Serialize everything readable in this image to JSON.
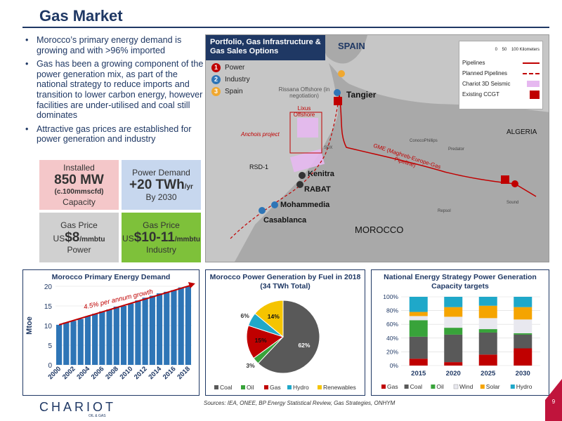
{
  "header": {
    "title": "Gas Market"
  },
  "bullets": [
    "Morocco’s primary energy demand is growing and with >96% imported",
    "Gas has been a growing component of the power generation mix, as part of the national strategy to reduce imports and transition to lower carbon energy, however facilities are under-utilised and coal still dominates",
    "Attractive gas prices are established for power generation and industry"
  ],
  "stats": {
    "installed": {
      "line1": "Installed",
      "big": "850 MW",
      "sub": "(c.100mmscfd)",
      "line4": "Capacity"
    },
    "demand": {
      "line1": "Power Demand",
      "big": "+20 TWh",
      "unit": "/yr",
      "line3": "By 2030"
    },
    "price_power": {
      "line1": "Gas Price",
      "prefix": "US",
      "big": "$8",
      "unit": "/mmbtu",
      "line3": "Power"
    },
    "price_industry": {
      "line1": "Gas Price",
      "prefix": "US",
      "big": "$10-11",
      "unit": "/mmbtu",
      "line3": "Industry"
    }
  },
  "map": {
    "header": "Portfolio, Gas Infrastructure & Gas Sales Options",
    "legend": [
      {
        "num": "1",
        "label": "Power"
      },
      {
        "num": "2",
        "label": "Industry"
      },
      {
        "num": "3",
        "label": "Spain"
      }
    ],
    "right_legend": [
      {
        "label": "Pipelines"
      },
      {
        "label": "Planned Pipelines"
      },
      {
        "label": "Chariot 3D Seismic"
      },
      {
        "label": "Existing CCGT"
      }
    ],
    "scale": {
      "a": "0",
      "b": "50",
      "c": "100 Kilometers"
    },
    "labels": {
      "spain": "SPAIN",
      "tangier": "Tangier",
      "algeria": "ALGERIA",
      "morocco": "MOROCCO",
      "kenitra": "Kenitra",
      "rabat": "RABAT",
      "mohammedia": "Mohammedia",
      "casablanca": "Casablanca",
      "rissana": "Rissana Offshore (in negotiation)",
      "lixus": "Lixus Offshore",
      "anchois": "Anchois project",
      "rsd": "RSD-1",
      "gme": "GME (Maghreb-Europe-Gas Pipeline)",
      "conoco": "ConocoPhillips",
      "predator": "Predator",
      "sdx": "SDX",
      "repsol": "Repsol",
      "sound": "Sound"
    }
  },
  "chart_primary": {
    "title": "Morocco Primary Energy Demand",
    "annotation": "4.5% per annum growth",
    "color": "#2e75b6",
    "trend_color": "#c00000"
  },
  "chart_pie": {
    "title": "Morocco Power Generation by Fuel in 2018 (34 TWh Total)"
  },
  "chart_ne": {
    "title": "National Energy Strategy Power Generation Capacity targets"
  },
  "footer": {
    "source": "Sources: IEA, ONEE, BP Energy Statistical Review, Gas Strategies, ONHYM",
    "logo": "CHARIOT",
    "logo_sub": "OIL & GAS",
    "page": "9"
  },
  "chart_data": [
    {
      "type": "bar",
      "title": "Morocco Primary Energy Demand",
      "ylabel": "Mtoe",
      "ylim": [
        0,
        20
      ],
      "yticks": [
        0,
        5,
        10,
        15,
        20
      ],
      "categories": [
        "2000",
        "2001",
        "2002",
        "2003",
        "2004",
        "2005",
        "2006",
        "2007",
        "2008",
        "2009",
        "2010",
        "2011",
        "2012",
        "2013",
        "2014",
        "2015",
        "2016",
        "2017",
        "2018"
      ],
      "xtick_labels": [
        "2000",
        "2002",
        "2004",
        "2006",
        "2008",
        "2010",
        "2012",
        "2014",
        "2016",
        "2018"
      ],
      "values": [
        10.2,
        10.8,
        11.2,
        11.7,
        12.4,
        13.0,
        13.6,
        14.1,
        14.8,
        15.0,
        15.6,
        16.4,
        17.1,
        17.6,
        18.2,
        18.6,
        19.0,
        19.7,
        20.0
      ],
      "grid": true
    },
    {
      "type": "pie",
      "title": "Morocco Power Generation by Fuel in 2018 (34 TWh Total)",
      "slices": [
        {
          "label": "Coal",
          "value": 62,
          "color": "#595959"
        },
        {
          "label": "Oil",
          "value": 3,
          "color": "#38a33a"
        },
        {
          "label": "Gas",
          "value": 15,
          "color": "#c00000"
        },
        {
          "label": "Hydro",
          "value": 6,
          "color": "#1fa8c9"
        },
        {
          "label": "Renewables",
          "value": 14,
          "color": "#f5c400"
        }
      ],
      "data_labels": {
        "Coal": "62%",
        "Oil": "3%",
        "Gas": "15%",
        "Hydro": "6%",
        "Renewables": "14%"
      },
      "legend": "bottom"
    },
    {
      "type": "bar",
      "stacked": true,
      "title": "National Energy Strategy Power Generation Capacity targets",
      "categories": [
        "2015",
        "2020",
        "2025",
        "2030"
      ],
      "ylim": [
        0,
        100
      ],
      "yticks": [
        "0%",
        "20%",
        "40%",
        "60%",
        "80%",
        "100%"
      ],
      "series": [
        {
          "name": "Gas",
          "color": "#c00000",
          "values": [
            10,
            5,
            16,
            25
          ]
        },
        {
          "name": "Coal",
          "color": "#595959",
          "values": [
            32,
            40,
            32,
            20
          ]
        },
        {
          "name": "Oil",
          "color": "#38a33a",
          "values": [
            24,
            10,
            5,
            2
          ]
        },
        {
          "name": "Wind",
          "color": "#e8e8ef",
          "values": [
            6,
            16,
            16,
            20
          ]
        },
        {
          "name": "Solar",
          "color": "#f5a400",
          "values": [
            6,
            14,
            18,
            18
          ]
        },
        {
          "name": "Hydro",
          "color": "#1fa8c9",
          "values": [
            22,
            15,
            13,
            15
          ]
        }
      ],
      "legend": "bottom"
    }
  ]
}
